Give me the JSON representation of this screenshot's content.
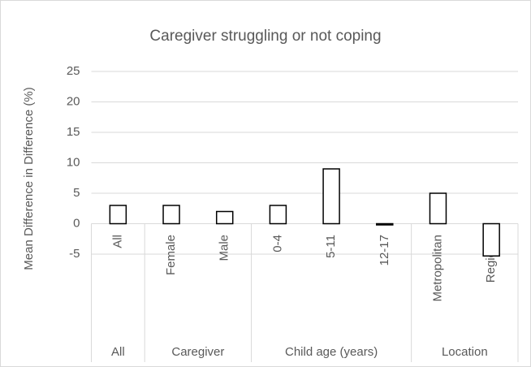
{
  "chart_data": {
    "type": "bar",
    "title": "Caregiver struggling or not coping",
    "y_label": "Mean Difference in Difference (%)",
    "categories": [
      "All",
      "Female",
      "Male",
      "0-4",
      "5-11",
      "12-17",
      "Metropolitan",
      "Regional"
    ],
    "category_groups": [
      "All",
      "Caregiver",
      "Caregiver",
      "Child age (years)",
      "Child age (years)",
      "Child age (years)",
      "Location",
      "Location"
    ],
    "values": [
      3,
      3,
      2,
      3,
      9,
      -0.2,
      5,
      -5.3
    ],
    "color": "#ffffff",
    "edge_color": "#000000",
    "ylim": [
      -5,
      25
    ],
    "yticks": [
      -5,
      0,
      5,
      10,
      15,
      20,
      25
    ],
    "grid": true
  }
}
